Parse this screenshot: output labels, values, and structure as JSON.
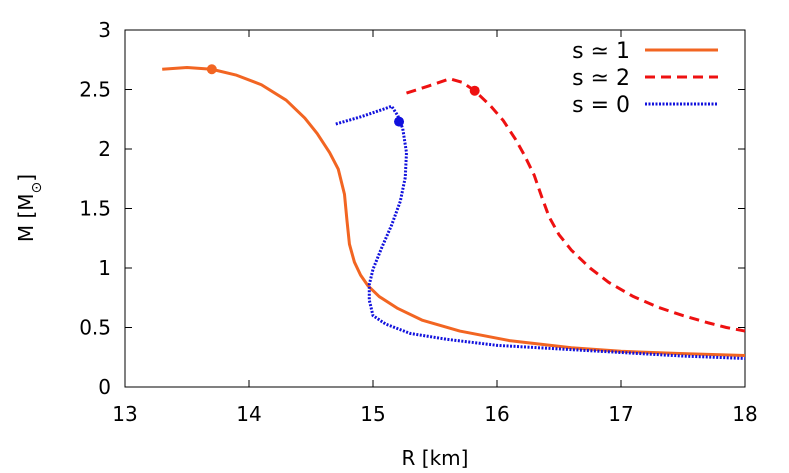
{
  "chart_data": {
    "type": "line",
    "title": "",
    "xlabel": "R [km]",
    "ylabel_main": "M [M",
    "ylabel_sub": "⊙",
    "ylabel_close": "]",
    "xlim": [
      13,
      18
    ],
    "ylim": [
      0,
      3
    ],
    "xticks": [
      13,
      14,
      15,
      16,
      17,
      18
    ],
    "xtick_labels": [
      "13",
      "14",
      "15",
      "16",
      "17",
      "18"
    ],
    "yticks": [
      0,
      0.5,
      1,
      1.5,
      2,
      2.5,
      3
    ],
    "ytick_labels": [
      "0",
      "0.5",
      "1",
      "1.5",
      "2",
      "2.5",
      "3"
    ],
    "grid": false,
    "legend_position": "top-right",
    "series": [
      {
        "name": "s ≃ 1",
        "color": "#f26522",
        "style": "solid",
        "points": [
          [
            13.3,
            2.67
          ],
          [
            13.5,
            2.685
          ],
          [
            13.7,
            2.67
          ],
          [
            13.9,
            2.62
          ],
          [
            14.1,
            2.54
          ],
          [
            14.3,
            2.41
          ],
          [
            14.45,
            2.26
          ],
          [
            14.55,
            2.13
          ],
          [
            14.65,
            1.97
          ],
          [
            14.72,
            1.83
          ],
          [
            14.77,
            1.62
          ],
          [
            14.79,
            1.4
          ],
          [
            14.81,
            1.2
          ],
          [
            14.85,
            1.05
          ],
          [
            14.9,
            0.94
          ],
          [
            14.96,
            0.85
          ],
          [
            15.05,
            0.76
          ],
          [
            15.2,
            0.66
          ],
          [
            15.4,
            0.56
          ],
          [
            15.7,
            0.47
          ],
          [
            16.1,
            0.39
          ],
          [
            16.6,
            0.33
          ],
          [
            17.0,
            0.3
          ],
          [
            17.5,
            0.28
          ],
          [
            18.0,
            0.265
          ]
        ],
        "marker": [
          13.7,
          2.67
        ]
      },
      {
        "name": "s ≃ 2",
        "color": "#ee1111",
        "style": "dashed",
        "points": [
          [
            15.27,
            2.47
          ],
          [
            15.45,
            2.53
          ],
          [
            15.62,
            2.59
          ],
          [
            15.72,
            2.56
          ],
          [
            15.82,
            2.49
          ],
          [
            15.95,
            2.36
          ],
          [
            16.05,
            2.24
          ],
          [
            16.15,
            2.08
          ],
          [
            16.22,
            1.95
          ],
          [
            16.3,
            1.78
          ],
          [
            16.36,
            1.6
          ],
          [
            16.42,
            1.43
          ],
          [
            16.5,
            1.28
          ],
          [
            16.6,
            1.15
          ],
          [
            16.75,
            1.0
          ],
          [
            16.9,
            0.88
          ],
          [
            17.1,
            0.76
          ],
          [
            17.3,
            0.67
          ],
          [
            17.5,
            0.6
          ],
          [
            17.7,
            0.54
          ],
          [
            17.85,
            0.5
          ],
          [
            18.0,
            0.47
          ]
        ],
        "marker": [
          15.82,
          2.49
        ]
      },
      {
        "name": "s = 0",
        "color": "#1111dd",
        "style": "dotted",
        "points": [
          [
            14.7,
            2.21
          ],
          [
            14.9,
            2.27
          ],
          [
            15.1,
            2.34
          ],
          [
            15.15,
            2.36
          ],
          [
            15.2,
            2.28
          ],
          [
            15.24,
            2.17
          ],
          [
            15.27,
            1.97
          ],
          [
            15.26,
            1.76
          ],
          [
            15.22,
            1.56
          ],
          [
            15.15,
            1.36
          ],
          [
            15.07,
            1.17
          ],
          [
            15.0,
            0.99
          ],
          [
            14.97,
            0.86
          ],
          [
            14.97,
            0.73
          ],
          [
            15.0,
            0.6
          ],
          [
            15.1,
            0.53
          ],
          [
            15.3,
            0.45
          ],
          [
            15.6,
            0.4
          ],
          [
            16.0,
            0.35
          ],
          [
            16.5,
            0.32
          ],
          [
            17.0,
            0.29
          ],
          [
            17.5,
            0.26
          ],
          [
            18.0,
            0.24
          ]
        ],
        "marker": [
          15.21,
          2.23
        ]
      }
    ]
  }
}
